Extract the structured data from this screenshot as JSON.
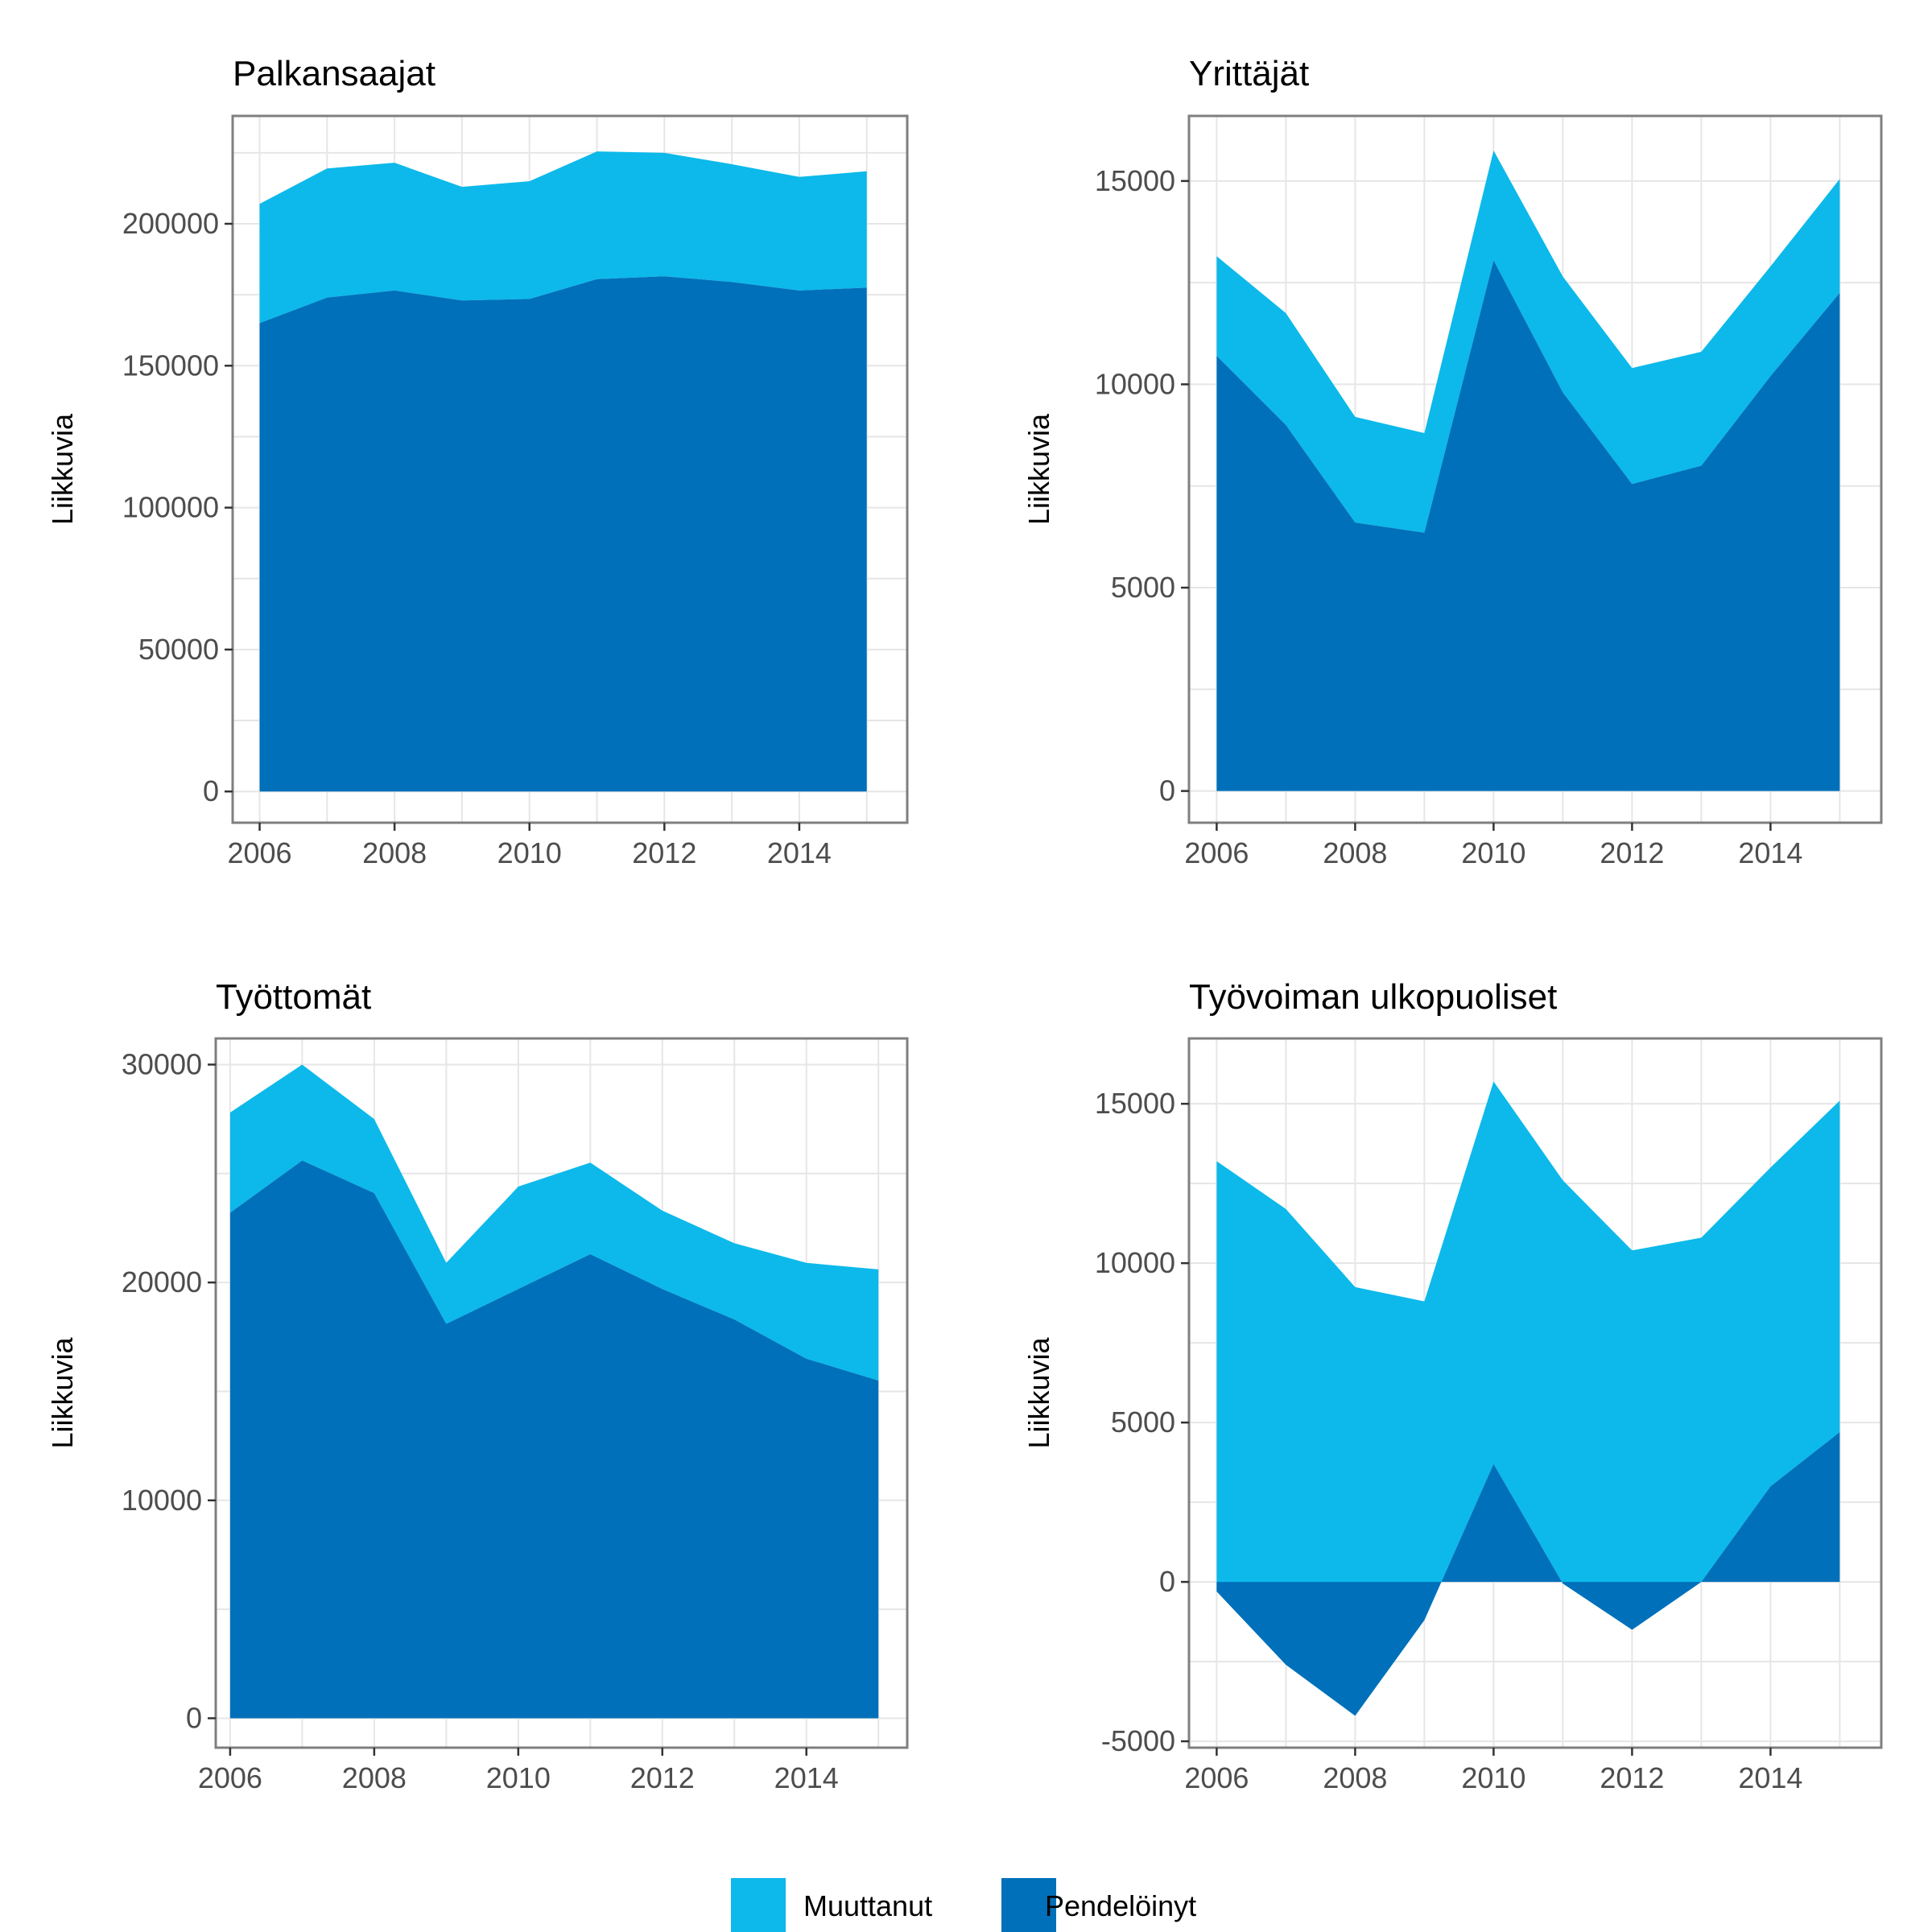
{
  "colors": {
    "muuttanut": "#0CB9EA",
    "pendeloinyt": "#0070BA"
  },
  "legend": {
    "items": [
      {
        "label": "Muuttanut",
        "color": "#0CB9EA"
      },
      {
        "label": "Pendelöinyt",
        "color": "#0070BA"
      }
    ]
  },
  "chart_data": [
    {
      "type": "area",
      "stacked": true,
      "title": "Palkansaajat",
      "ylabel": "Liikkuvia",
      "x": [
        2006,
        2007,
        2008,
        2009,
        2010,
        2011,
        2012,
        2013,
        2014,
        2015
      ],
      "xlim": [
        2005.6,
        2015.6
      ],
      "xticks": [
        2006,
        2008,
        2010,
        2012,
        2014
      ],
      "ylim": [
        -11000,
        238000
      ],
      "yticks": [
        0,
        50000,
        100000,
        150000,
        200000
      ],
      "grid": true,
      "series": [
        {
          "name": "Pendelöinyt",
          "values": [
            165000,
            174000,
            176500,
            173000,
            173500,
            180500,
            181500,
            179500,
            176500,
            177500
          ]
        },
        {
          "name": "Muuttanut",
          "values": [
            42000,
            45500,
            45000,
            40000,
            41500,
            45000,
            43500,
            41500,
            40000,
            41000
          ]
        }
      ]
    },
    {
      "type": "area",
      "stacked": true,
      "title": "Yrittäjät",
      "ylabel": "Liikkuvia",
      "x": [
        2006,
        2007,
        2008,
        2009,
        2010,
        2011,
        2012,
        2013,
        2014,
        2015
      ],
      "xlim": [
        2005.6,
        2015.6
      ],
      "xticks": [
        2006,
        2008,
        2010,
        2012,
        2014
      ],
      "ylim": [
        -780,
        16600
      ],
      "yticks": [
        0,
        5000,
        10000,
        15000
      ],
      "grid": true,
      "series": [
        {
          "name": "Pendelöinyt",
          "values": [
            10700,
            9000,
            6600,
            6350,
            13050,
            9800,
            7550,
            8000,
            10200,
            12250
          ]
        },
        {
          "name": "Muuttanut",
          "values": [
            2450,
            2750,
            2600,
            2450,
            2700,
            2850,
            2850,
            2800,
            2700,
            2800
          ]
        }
      ]
    },
    {
      "type": "area",
      "stacked": true,
      "title": "Työttomät",
      "ylabel": "Liikkuvia",
      "x": [
        2006,
        2007,
        2008,
        2009,
        2010,
        2011,
        2012,
        2013,
        2014,
        2015
      ],
      "xlim": [
        2005.8,
        2015.4
      ],
      "xticks": [
        2006,
        2008,
        2010,
        2012,
        2014
      ],
      "ylim": [
        -1350,
        31200
      ],
      "yticks": [
        0,
        10000,
        20000,
        30000
      ],
      "grid": true,
      "series": [
        {
          "name": "Pendelöinyt",
          "values": [
            23200,
            25600,
            24100,
            18100,
            19700,
            21300,
            19700,
            18300,
            16500,
            15500
          ]
        },
        {
          "name": "Muuttanut",
          "values": [
            4600,
            4400,
            3400,
            2800,
            4700,
            4200,
            3600,
            3500,
            4400,
            5100
          ]
        }
      ]
    },
    {
      "type": "area",
      "stacked": true,
      "title": "Työvoiman ulkopuoliset",
      "ylabel": "Liikkuvia",
      "x": [
        2006,
        2007,
        2008,
        2009,
        2010,
        2011,
        2012,
        2013,
        2014,
        2015
      ],
      "xlim": [
        2005.6,
        2015.6
      ],
      "xticks": [
        2006,
        2008,
        2010,
        2012,
        2014
      ],
      "ylim": [
        -5200,
        17050
      ],
      "yticks": [
        -5000,
        0,
        5000,
        10000,
        15000
      ],
      "grid": true,
      "series": [
        {
          "name": "Pendelöinyt",
          "values": [
            -300,
            -2600,
            -4200,
            -1200,
            3700,
            -50,
            -1500,
            0,
            3000,
            4700
          ]
        },
        {
          "name": "Muuttanut",
          "values": [
            13500,
            14300,
            13450,
            10000,
            12000,
            12650,
            11900,
            10800,
            10000,
            10400
          ]
        }
      ]
    }
  ]
}
